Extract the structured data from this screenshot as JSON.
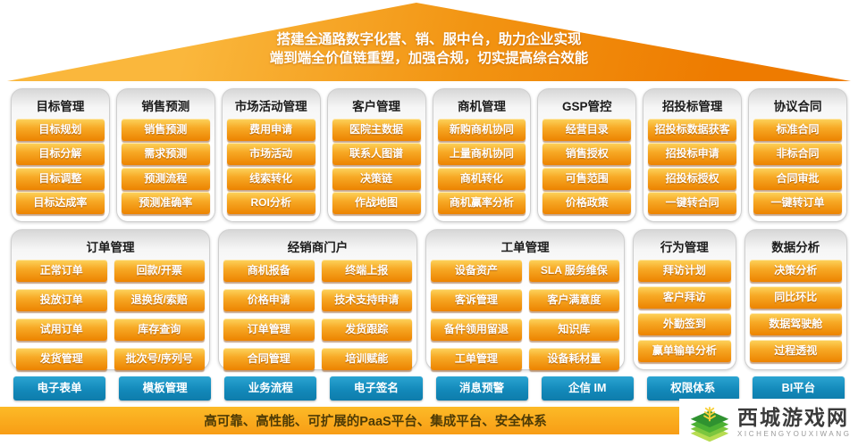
{
  "roof": {
    "line1": "搭建全通路数字化营、销、服中台，助力企业实现",
    "line2": "端到端全价值链重塑，加强合规，切实提高综合效能"
  },
  "row1": [
    {
      "title": "目标管理",
      "items": [
        "目标规划",
        "目标分解",
        "目标调整",
        "目标达成率"
      ]
    },
    {
      "title": "销售预测",
      "items": [
        "销售预测",
        "需求预测",
        "预测流程",
        "预测准确率"
      ]
    },
    {
      "title": "市场活动管理",
      "items": [
        "费用申请",
        "市场活动",
        "线索转化",
        "ROI分析"
      ]
    },
    {
      "title": "客户管理",
      "items": [
        "医院主数据",
        "联系人图谱",
        "决策链",
        "作战地图"
      ]
    },
    {
      "title": "商机管理",
      "items": [
        "新购商机协同",
        "上量商机协同",
        "商机转化",
        "商机赢率分析"
      ]
    },
    {
      "title": "GSP管控",
      "items": [
        "经营目录",
        "销售授权",
        "可售范围",
        "价格政策"
      ]
    },
    {
      "title": "招投标管理",
      "items": [
        "招投标数据获客",
        "招投标申请",
        "招投标授权",
        "一键转合同"
      ]
    },
    {
      "title": "协议合同",
      "items": [
        "标准合同",
        "非标合同",
        "合同审批",
        "一键转订单"
      ]
    }
  ],
  "row2": [
    {
      "title": "订单管理",
      "columns": [
        [
          "正常订单",
          "投放订单",
          "试用订单",
          "发货管理"
        ],
        [
          "回款/开票",
          "退换货/索赔",
          "库存查询",
          "批次号/序列号"
        ]
      ]
    },
    {
      "title": "经销商门户",
      "columns": [
        [
          "商机报备",
          "价格申请",
          "订单管理",
          "合同管理"
        ],
        [
          "终端上报",
          "技术支持申请",
          "发货跟踪",
          "培训赋能"
        ]
      ]
    },
    {
      "title": "工单管理",
      "columns": [
        [
          "设备资产",
          "客诉管理",
          "备件领用留退",
          "工单管理"
        ],
        [
          "SLA 服务维保",
          "客户满意度",
          "知识库",
          "设备耗材量"
        ]
      ]
    },
    {
      "title": "行为管理",
      "items": [
        "拜访计划",
        "客户拜访",
        "外勤签到",
        "赢单输单分析"
      ]
    },
    {
      "title": "数据分析",
      "items": [
        "决策分析",
        "同比环比",
        "数据驾驶舱",
        "过程透视"
      ]
    }
  ],
  "bottom_buttons": [
    "电子表单",
    "模板管理",
    "业务流程",
    "电子签名",
    "消息预警",
    "企信 IM",
    "权限体系",
    "BI平台"
  ],
  "footer": {
    "bar_text": "高可靠、高性能、可扩展的PaaS平台、集成平台、安全体系"
  },
  "logo": {
    "title": "西城游戏网",
    "subtitle": "XICHENGYOUXIWANG"
  },
  "colors": {
    "roof_orange_light": "#FAB73C",
    "roof_orange_deep": "#EE7B00",
    "button_orange": "#F7A925",
    "button_blue": "#1389BA",
    "footer_bar": "#F89D15",
    "logo_green": "#3DA52F"
  }
}
